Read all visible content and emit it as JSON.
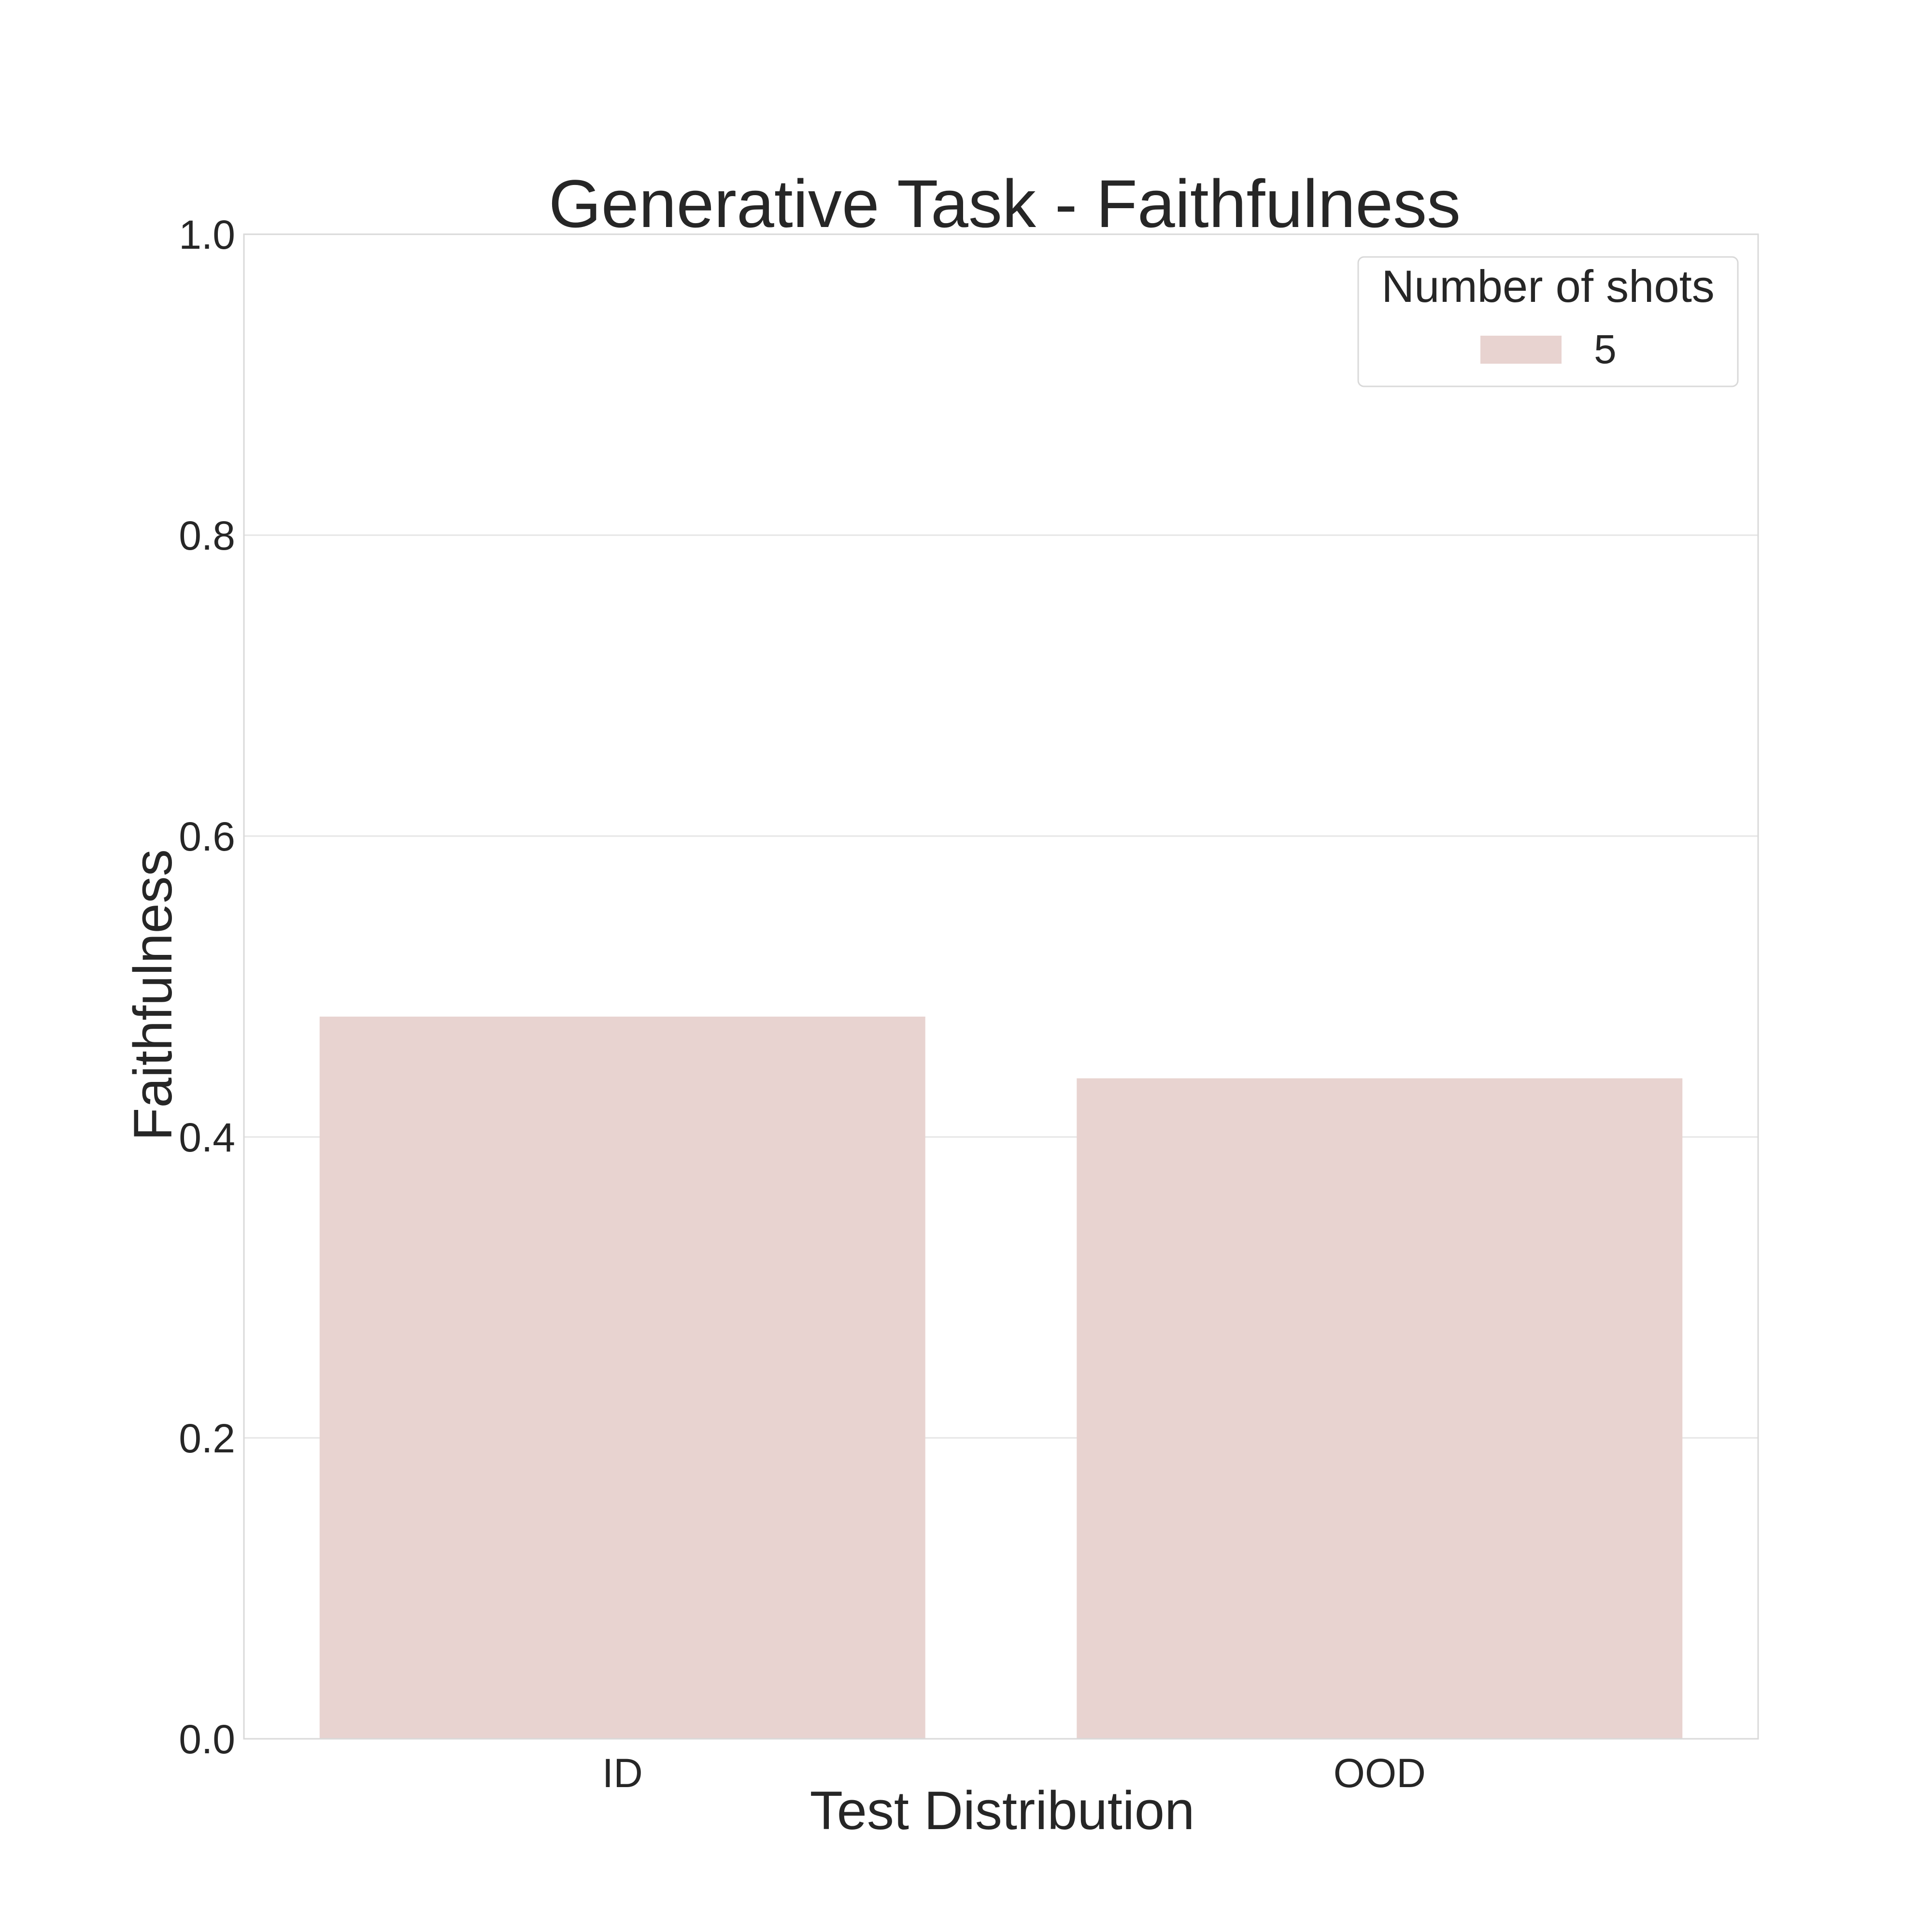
{
  "chart_data": {
    "type": "bar",
    "title": "Generative Task - Faithfulness",
    "xlabel": "Test Distribution",
    "ylabel": "Faithfulness",
    "categories": [
      "ID",
      "OOD"
    ],
    "series": [
      {
        "name": "5",
        "values": [
          0.48,
          0.439
        ],
        "color": "#e8d3d0"
      }
    ],
    "ylim": [
      0.0,
      1.0
    ],
    "yticks": [
      0.0,
      0.2,
      0.4,
      0.6,
      0.8,
      1.0
    ],
    "ytick_labels": [
      "0.0",
      "0.2",
      "0.4",
      "0.6",
      "0.8",
      "1.0"
    ],
    "grid": "horizontal",
    "legend": {
      "title": "Number of shots",
      "placement": "top-right"
    },
    "colors": {
      "text": "#262626",
      "grid": "#e6e6e6",
      "frame": "#d9d9d9",
      "background": "#ffffff"
    }
  }
}
